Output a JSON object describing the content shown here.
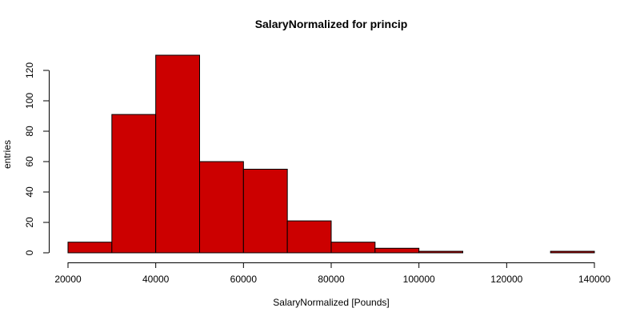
{
  "chart_data": {
    "type": "bar",
    "title": "SalaryNormalized for princip",
    "xlabel": "SalaryNormalized [Pounds]",
    "ylabel": "entries",
    "bar_color": "#cc0000",
    "bin_edges": [
      20000,
      30000,
      40000,
      50000,
      60000,
      70000,
      80000,
      90000,
      100000,
      110000,
      120000,
      130000,
      140000
    ],
    "values": [
      7,
      91,
      130,
      60,
      55,
      21,
      7,
      3,
      1,
      0,
      0,
      1
    ],
    "xlim": [
      20000,
      140000
    ],
    "ylim": [
      0,
      130
    ],
    "x_ticks": [
      "20000",
      "40000",
      "60000",
      "80000",
      "100000",
      "120000",
      "140000"
    ],
    "y_ticks": [
      "0",
      "20",
      "40",
      "60",
      "80",
      "100",
      "120"
    ],
    "grid": false,
    "legend": "none"
  }
}
